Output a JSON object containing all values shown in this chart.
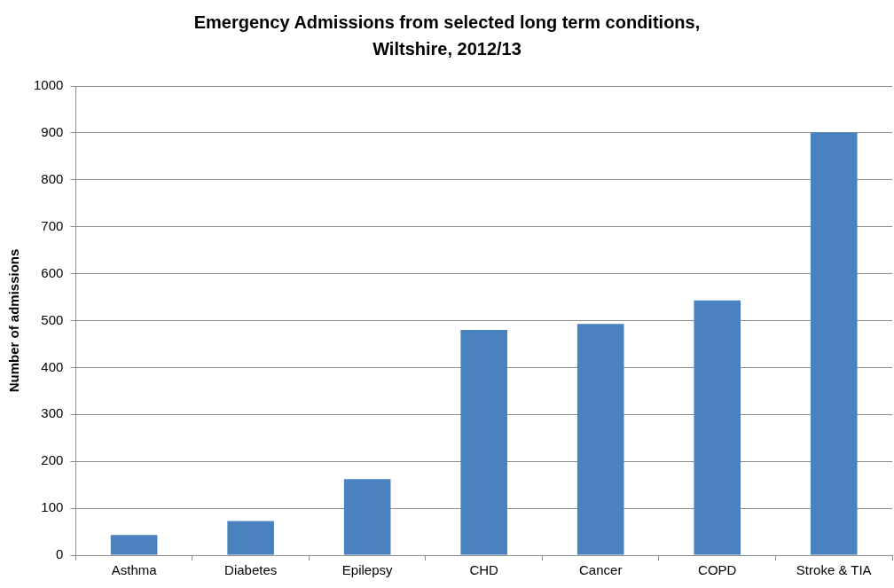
{
  "chart_data": {
    "type": "bar",
    "title": "Emergency Admissions from selected long term conditions, Wiltshire, 2012/13",
    "ylabel": "Number of admissions",
    "categories": [
      "Asthma",
      "Diabetes",
      "Epilepsy",
      "CHD",
      "Cancer",
      "COPD",
      "Stroke & TIA"
    ],
    "values": [
      43,
      73,
      162,
      480,
      493,
      543,
      901
    ],
    "color": "#4a81bf",
    "ylim": [
      0,
      1000
    ],
    "yticks": [
      0,
      100,
      200,
      300,
      400,
      500,
      600,
      700,
      800,
      900,
      1000
    ],
    "grid": "y",
    "legend": false
  }
}
